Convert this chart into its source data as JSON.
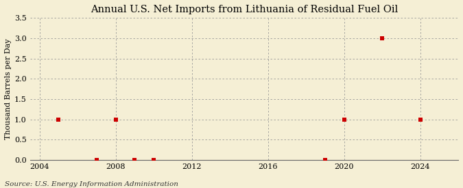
{
  "title": "Annual U.S. Net Imports from Lithuania of Residual Fuel Oil",
  "ylabel": "Thousand Barrels per Day",
  "source_text": "Source: U.S. Energy Information Administration",
  "background_color": "#f5efd5",
  "data_points": [
    {
      "year": 2005,
      "value": 1.0
    },
    {
      "year": 2007,
      "value": 0.0
    },
    {
      "year": 2008,
      "value": 1.0
    },
    {
      "year": 2009,
      "value": 0.0
    },
    {
      "year": 2010,
      "value": 0.0
    },
    {
      "year": 2019,
      "value": 0.0
    },
    {
      "year": 2020,
      "value": 1.0
    },
    {
      "year": 2022,
      "value": 3.0
    },
    {
      "year": 2024,
      "value": 1.0
    }
  ],
  "marker_color": "#cc0000",
  "marker_size": 4,
  "xlim": [
    2003.5,
    2026
  ],
  "ylim": [
    0,
    3.5
  ],
  "yticks": [
    0.0,
    0.5,
    1.0,
    1.5,
    2.0,
    2.5,
    3.0,
    3.5
  ],
  "xticks": [
    2004,
    2008,
    2012,
    2016,
    2020,
    2024
  ],
  "grid_color": "#999999",
  "title_fontsize": 10.5,
  "axis_label_fontsize": 8,
  "tick_fontsize": 8,
  "source_fontsize": 7.5,
  "vgrid_positions": [
    2004,
    2008,
    2012,
    2016,
    2020,
    2024
  ]
}
